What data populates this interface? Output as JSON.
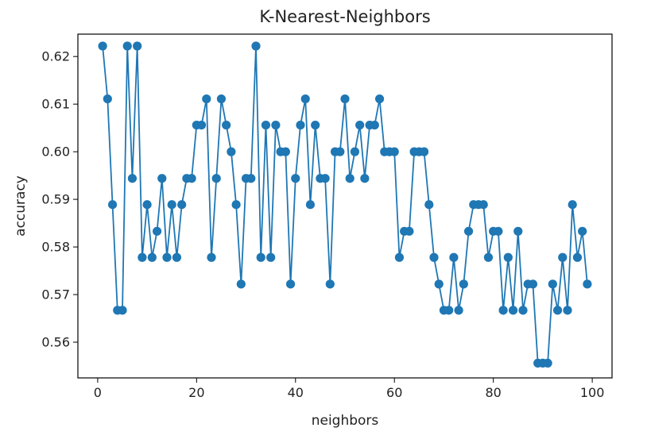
{
  "chart_data": {
    "type": "line",
    "title": "K-Nearest-Neighbors",
    "xlabel": "neighbors",
    "ylabel": "accuracy",
    "xlim": [
      -4,
      104
    ],
    "ylim": [
      0.5525,
      0.6247
    ],
    "xticks": [
      0,
      20,
      40,
      60,
      80,
      100
    ],
    "xtick_labels": [
      "0",
      "20",
      "40",
      "60",
      "80",
      "100"
    ],
    "yticks": [
      0.56,
      0.57,
      0.58,
      0.59,
      0.6,
      0.61,
      0.62
    ],
    "ytick_labels": [
      "0.56",
      "0.57",
      "0.58",
      "0.59",
      "0.60",
      "0.61",
      "0.62"
    ],
    "grid": false,
    "marker": "circle",
    "series_color": "#1f77b4",
    "series": [
      {
        "x": [
          1,
          2,
          3,
          4,
          5,
          6,
          7,
          8,
          9,
          10,
          11,
          12,
          13,
          14,
          15,
          16,
          17,
          18,
          19,
          20,
          21,
          22,
          23,
          24,
          25,
          26,
          27,
          28,
          29,
          30,
          31,
          32,
          33,
          34,
          35,
          36,
          37,
          38,
          39,
          40,
          41,
          42,
          43,
          44,
          45,
          46,
          47,
          48,
          49,
          50,
          51,
          52,
          53,
          54,
          55,
          56,
          57,
          58,
          59,
          60,
          61,
          62,
          63,
          64,
          65,
          66,
          67,
          68,
          69,
          70,
          71,
          72,
          73,
          74,
          75,
          76,
          77,
          78,
          79,
          80,
          81,
          82,
          83,
          84,
          85,
          86,
          87,
          88,
          89,
          90,
          91,
          92,
          93,
          94,
          95,
          96,
          97,
          98,
          99
        ],
        "values": [
          0.6222,
          0.6111,
          0.5889,
          0.5667,
          0.5667,
          0.6222,
          0.5944,
          0.6222,
          0.5778,
          0.5889,
          0.5778,
          0.5833,
          0.5944,
          0.5778,
          0.5889,
          0.5778,
          0.5889,
          0.5944,
          0.5944,
          0.6056,
          0.6056,
          0.6111,
          0.5778,
          0.5944,
          0.6111,
          0.6056,
          0.6,
          0.5889,
          0.5722,
          0.5944,
          0.5944,
          0.6222,
          0.5778,
          0.6056,
          0.5778,
          0.6056,
          0.6,
          0.6,
          0.5722,
          0.5944,
          0.6056,
          0.6111,
          0.5889,
          0.6056,
          0.5944,
          0.5944,
          0.5722,
          0.6,
          0.6,
          0.6111,
          0.5944,
          0.6,
          0.6056,
          0.5944,
          0.6056,
          0.6056,
          0.6111,
          0.6,
          0.6,
          0.6,
          0.5778,
          0.5833,
          0.5833,
          0.6,
          0.6,
          0.6,
          0.5889,
          0.5778,
          0.5722,
          0.5667,
          0.5667,
          0.5778,
          0.5667,
          0.5722,
          0.5833,
          0.5889,
          0.5889,
          0.5889,
          0.5778,
          0.5833,
          0.5833,
          0.5667,
          0.5778,
          0.5667,
          0.5833,
          0.5667,
          0.5722,
          0.5722,
          0.5556,
          0.5556,
          0.5556,
          0.5722,
          0.5667,
          0.5778,
          0.5667,
          0.5889,
          0.5778,
          0.5833,
          0.5722
        ]
      }
    ]
  }
}
